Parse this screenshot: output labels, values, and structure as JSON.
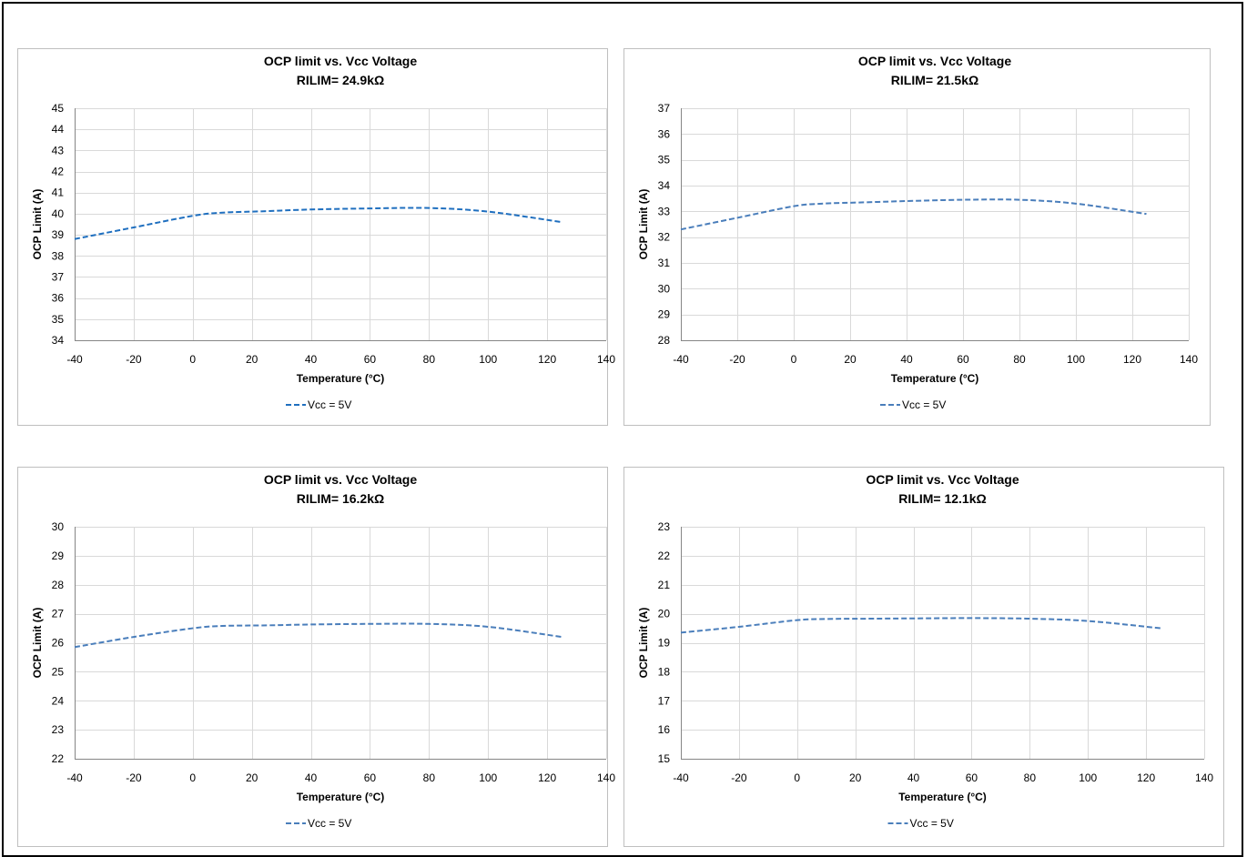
{
  "chart_data": [
    {
      "type": "line",
      "title": "OCP limit vs. Vcc Voltage",
      "subtitle": "RILIM= 24.9kΩ",
      "xlabel": "Temperature (°C)",
      "ylabel": "OCP Limit (A)",
      "xlim": [
        -40,
        140
      ],
      "xstep": 20,
      "ylim": [
        34,
        45
      ],
      "ystep": 1,
      "grid": true,
      "legend_position": "bottom",
      "series": [
        {
          "name": "Vcc = 5V",
          "color": "#1f6fbf",
          "style": "dashed",
          "x": [
            -40,
            -20,
            0,
            10,
            25,
            40,
            60,
            80,
            100,
            125
          ],
          "y": [
            38.8,
            39.35,
            39.9,
            40.05,
            40.12,
            40.2,
            40.25,
            40.27,
            40.1,
            39.6
          ]
        }
      ]
    },
    {
      "type": "line",
      "title": "OCP limit vs. Vcc Voltage",
      "subtitle": "RILIM= 21.5kΩ",
      "xlabel": "Temperature (°C)",
      "ylabel": "OCP Limit (A)",
      "xlim": [
        -40,
        140
      ],
      "xstep": 20,
      "ylim": [
        28,
        37
      ],
      "ystep": 1,
      "grid": true,
      "legend_position": "bottom",
      "series": [
        {
          "name": "Vcc = 5V",
          "color": "#4a7ebb",
          "style": "dashed",
          "x": [
            -40,
            -20,
            0,
            10,
            25,
            40,
            60,
            80,
            100,
            125
          ],
          "y": [
            32.3,
            32.75,
            33.2,
            33.3,
            33.35,
            33.4,
            33.45,
            33.45,
            33.3,
            32.9
          ]
        }
      ]
    },
    {
      "type": "line",
      "title": "OCP limit vs. Vcc Voltage",
      "subtitle": "RILIM= 16.2kΩ",
      "xlabel": "Temperature (°C)",
      "ylabel": "OCP Limit (A)",
      "xlim": [
        -40,
        140
      ],
      "xstep": 20,
      "ylim": [
        22,
        30
      ],
      "ystep": 1,
      "grid": true,
      "legend_position": "bottom",
      "series": [
        {
          "name": "Vcc = 5V",
          "color": "#4a7ebb",
          "style": "dashed",
          "x": [
            -40,
            -20,
            0,
            10,
            25,
            40,
            60,
            80,
            100,
            125
          ],
          "y": [
            25.85,
            26.2,
            26.5,
            26.58,
            26.6,
            26.63,
            26.65,
            26.65,
            26.55,
            26.2
          ]
        }
      ]
    },
    {
      "type": "line",
      "title": "OCP limit vs. Vcc Voltage",
      "subtitle": "RILIM= 12.1kΩ",
      "xlabel": "Temperature (°C)",
      "ylabel": "OCP Limit (A)",
      "xlim": [
        -40,
        140
      ],
      "xstep": 20,
      "ylim": [
        15,
        23
      ],
      "ystep": 1,
      "grid": true,
      "legend_position": "bottom",
      "series": [
        {
          "name": "Vcc = 5V",
          "color": "#4a7ebb",
          "style": "dashed",
          "x": [
            -40,
            -20,
            0,
            10,
            25,
            40,
            60,
            80,
            100,
            125
          ],
          "y": [
            19.35,
            19.55,
            19.78,
            19.82,
            19.83,
            19.84,
            19.85,
            19.83,
            19.75,
            19.5
          ]
        }
      ]
    }
  ]
}
